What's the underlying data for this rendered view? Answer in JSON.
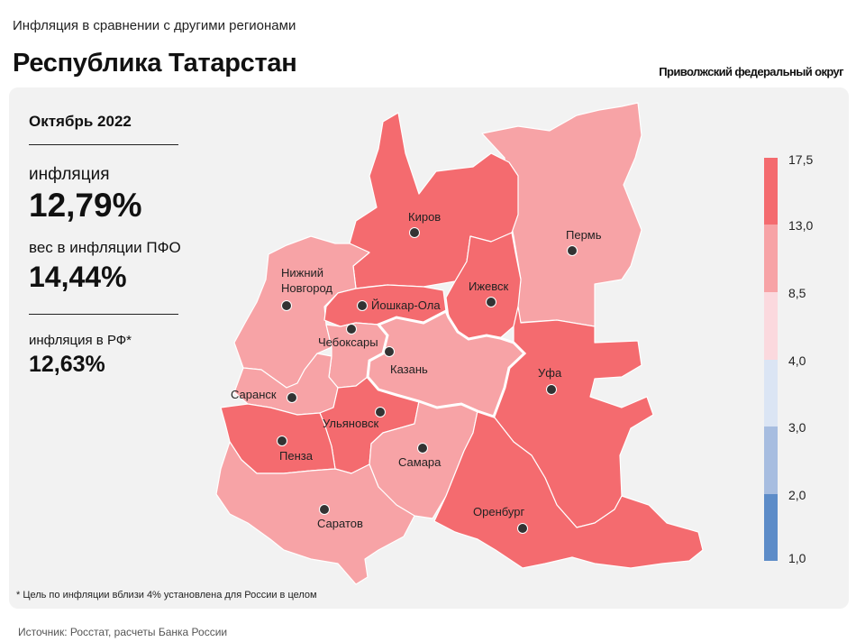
{
  "header": {
    "subtitle": "Инфляция в сравнении с другими регионами",
    "title": "Республика Татарстан",
    "district": "Приволжский федеральный округ"
  },
  "info": {
    "period": "Октябрь 2022",
    "inflation_label": "инфляция",
    "inflation_value": "12,79%",
    "weight_label": "вес в инфляции ПФО",
    "weight_value": "14,44%",
    "rf_label": "инфляция в РФ*",
    "rf_value": "12,63%"
  },
  "legend": {
    "ticks": [
      "17,5",
      "13,0",
      "8,5",
      "4,0",
      "3,0",
      "2,0",
      "1,0"
    ],
    "colors": [
      "#f46b6f",
      "#f7a3a6",
      "#fbd9de",
      "#dbe5f4",
      "#a7bde0",
      "#5d8cc8"
    ]
  },
  "regions": [
    {
      "name": "Киров",
      "color": "#f46b6f"
    },
    {
      "name": "Пермь",
      "color": "#f7a3a6"
    },
    {
      "name": "Нижний Новгород",
      "color": "#f7a3a6"
    },
    {
      "name": "Йошкар-Ола",
      "color": "#f46b6f"
    },
    {
      "name": "Ижевск",
      "color": "#f46b6f"
    },
    {
      "name": "Чебоксары",
      "color": "#f7a3a6"
    },
    {
      "name": "Казань",
      "color": "#f7a3a6"
    },
    {
      "name": "Уфа",
      "color": "#f46b6f"
    },
    {
      "name": "Саранск",
      "color": "#f7a3a6"
    },
    {
      "name": "Ульяновск",
      "color": "#f46b6f"
    },
    {
      "name": "Пенза",
      "color": "#f46b6f"
    },
    {
      "name": "Самара",
      "color": "#f7a3a6"
    },
    {
      "name": "Оренбург",
      "color": "#f46b6f"
    },
    {
      "name": "Саратов",
      "color": "#f7a3a6"
    }
  ],
  "cities": {
    "kirov": "Киров",
    "perm": "Пермь",
    "nn1": "Нижний",
    "nn2": "Новгород",
    "yoshkar": "Йошкар-Ола",
    "izhevsk": "Ижевск",
    "cheboksary": "Чебоксары",
    "kazan": "Казань",
    "ufa": "Уфа",
    "saransk": "Саранск",
    "ulyanovsk": "Ульяновск",
    "penza": "Пенза",
    "samara": "Самара",
    "orenburg": "Оренбург",
    "saratov": "Саратов"
  },
  "footnote": "* Цель по инфляции вблизи 4% установлена для России в целом",
  "source": "Источник: Росстат, расчеты Банка России"
}
